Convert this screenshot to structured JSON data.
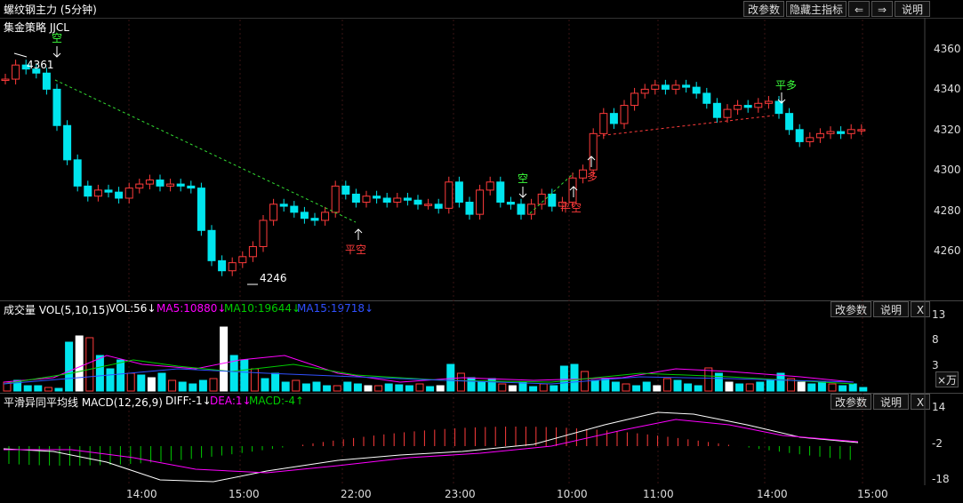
{
  "header": {
    "title": "螺纹钢主力 (5分钟)",
    "buttons": {
      "params": "改参数",
      "hide": "隐藏主指标",
      "prev": "⇐",
      "next": "⇒",
      "help": "说明"
    }
  },
  "main_panel": {
    "indicator": "集金策略 JJCL",
    "price_ticks": [
      "4360",
      "4340",
      "4320",
      "4300",
      "4280",
      "4260"
    ],
    "annotations": {
      "high_label": "4361",
      "low_label": "4246",
      "short1": "空",
      "cover1": "平空",
      "short2": "空",
      "cover2": "平空",
      "long1": "多",
      "close_long": "平多"
    }
  },
  "volume_panel": {
    "title": "成交量 VOL(5,10,15)",
    "vol": "VOL:56↓",
    "ma5": "MA5:10880↓",
    "ma10": "MA10:19644↓",
    "ma15": "MA15:19718↓",
    "ticks": [
      "13",
      "8",
      "3"
    ],
    "unit": "×万",
    "buttons": {
      "params": "改参数",
      "help": "说明",
      "close": "X"
    }
  },
  "macd_panel": {
    "title": "平滑异同平均线 MACD(12,26,9)",
    "diff": "DIFF:-1↓",
    "dea": "DEA:1↓",
    "macd": "MACD:-4↑",
    "ticks": [
      "14",
      "-2",
      "-18"
    ],
    "buttons": {
      "params": "改参数",
      "help": "说明",
      "close": "X"
    }
  },
  "time_axis": [
    "14:00",
    "15:00",
    "22:00",
    "23:00",
    "10:00",
    "11:00",
    "14:00",
    "15:00"
  ],
  "colors": {
    "up": "#ff3b3b",
    "down": "#00e5ee",
    "ma5": "#ff00ff",
    "ma10": "#00cc00",
    "ma15": "#3050ff"
  }
}
